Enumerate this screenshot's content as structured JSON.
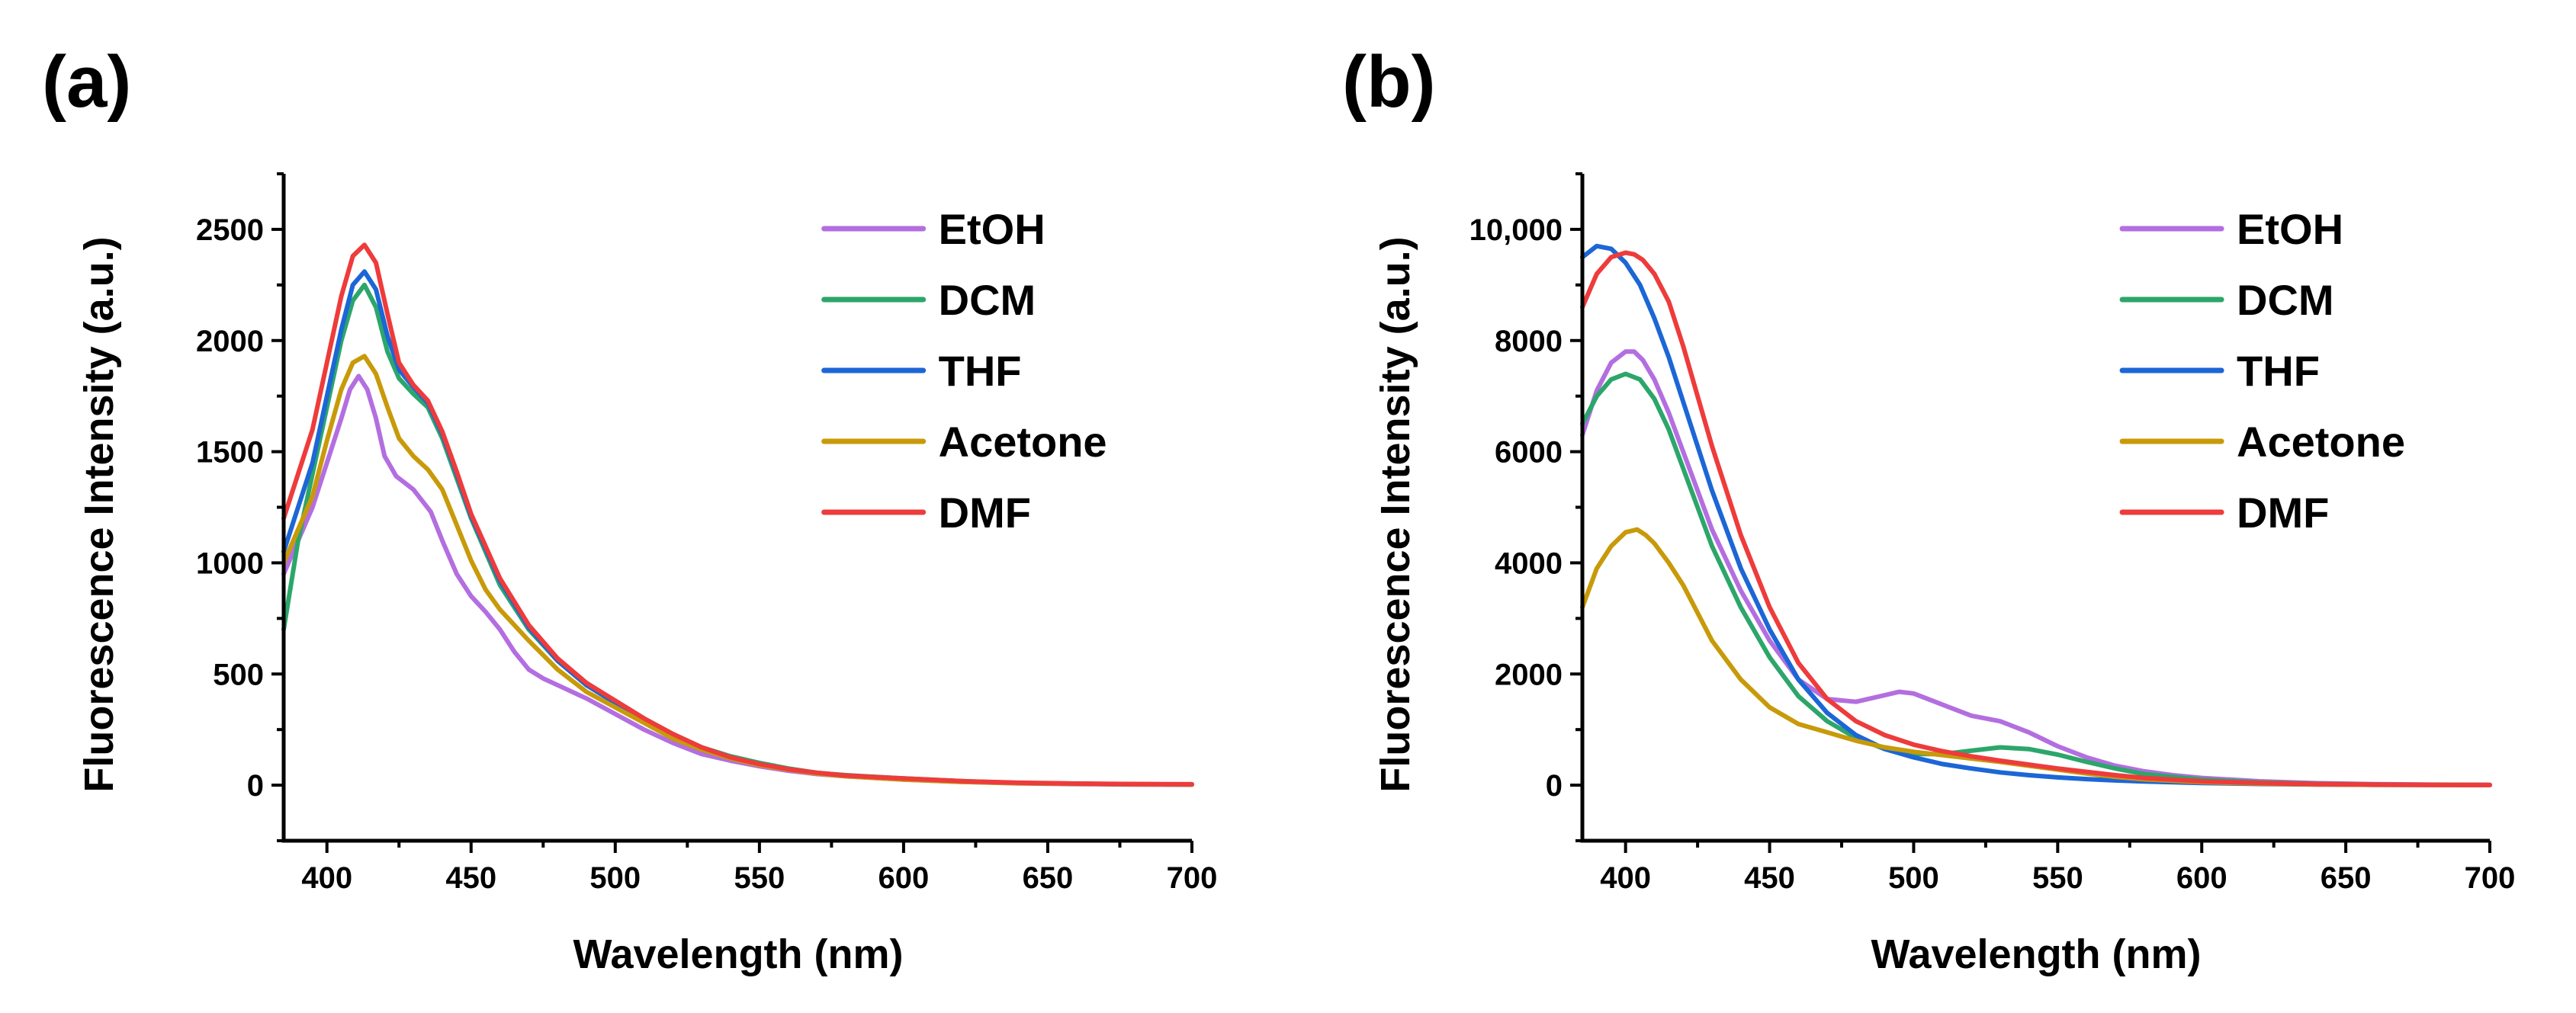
{
  "chart_data": [
    {
      "panel_label": "(a)",
      "type": "line",
      "xlabel": "Wavelength (nm)",
      "ylabel": "Fluorescence Intensity (a.u.)",
      "xlim": [
        385,
        700
      ],
      "ylim": [
        -250,
        2750
      ],
      "xticks": [
        400,
        450,
        500,
        550,
        600,
        650,
        700
      ],
      "xtick_labels": [
        "400",
        "450",
        "500",
        "550",
        "600",
        "650",
        "700"
      ],
      "yticks": [
        0,
        500,
        1000,
        1500,
        2000,
        2500
      ],
      "ytick_labels": [
        "0",
        "500",
        "1000",
        "1500",
        "2000",
        "2500"
      ],
      "legend_position": "top-right",
      "series": [
        {
          "name": "EtOH",
          "color": "#b36ee0",
          "x": [
            385,
            390,
            395,
            400,
            405,
            408,
            411,
            414,
            417,
            420,
            424,
            430,
            436,
            440,
            445,
            450,
            455,
            460,
            465,
            470,
            475,
            480,
            490,
            500,
            510,
            520,
            530,
            540,
            550,
            560,
            570,
            580,
            600,
            620,
            640,
            660,
            680,
            700
          ],
          "y": [
            950,
            1100,
            1250,
            1450,
            1650,
            1780,
            1840,
            1780,
            1650,
            1480,
            1390,
            1330,
            1230,
            1100,
            950,
            850,
            780,
            700,
            600,
            520,
            480,
            450,
            390,
            320,
            250,
            190,
            140,
            110,
            85,
            65,
            50,
            40,
            25,
            15,
            8,
            5,
            3,
            2
          ]
        },
        {
          "name": "DCM",
          "color": "#2ca66a",
          "x": [
            385,
            390,
            395,
            400,
            405,
            409,
            413,
            417,
            421,
            425,
            430,
            435,
            440,
            445,
            450,
            460,
            470,
            480,
            490,
            500,
            510,
            520,
            530,
            540,
            550,
            560,
            570,
            580,
            600,
            620,
            640,
            660,
            680,
            700
          ],
          "y": [
            700,
            1100,
            1400,
            1700,
            2000,
            2180,
            2250,
            2150,
            1950,
            1830,
            1760,
            1700,
            1560,
            1380,
            1200,
            900,
            700,
            560,
            450,
            380,
            300,
            230,
            170,
            130,
            100,
            75,
            55,
            45,
            30,
            18,
            10,
            6,
            4,
            3
          ]
        },
        {
          "name": "THF",
          "color": "#1c66d6",
          "x": [
            385,
            390,
            395,
            400,
            405,
            409,
            413,
            417,
            421,
            425,
            430,
            435,
            440,
            445,
            450,
            460,
            470,
            480,
            490,
            500,
            510,
            520,
            530,
            540,
            550,
            560,
            570,
            580,
            600,
            620,
            640,
            660,
            680,
            700
          ],
          "y": [
            1050,
            1250,
            1450,
            1750,
            2050,
            2250,
            2310,
            2230,
            2020,
            1870,
            1790,
            1720,
            1580,
            1400,
            1210,
            920,
            710,
            560,
            450,
            370,
            290,
            220,
            160,
            120,
            95,
            70,
            55,
            42,
            28,
            17,
            10,
            6,
            4,
            3
          ]
        },
        {
          "name": "Acetone",
          "color": "#c89a0a",
          "x": [
            385,
            390,
            395,
            400,
            405,
            409,
            413,
            417,
            421,
            425,
            430,
            435,
            440,
            445,
            450,
            455,
            460,
            470,
            480,
            490,
            500,
            510,
            520,
            530,
            540,
            550,
            560,
            570,
            580,
            600,
            620,
            640,
            660,
            680,
            700
          ],
          "y": [
            1000,
            1150,
            1300,
            1550,
            1780,
            1900,
            1930,
            1850,
            1700,
            1560,
            1480,
            1420,
            1330,
            1170,
            1010,
            880,
            790,
            650,
            520,
            420,
            350,
            280,
            210,
            160,
            120,
            90,
            70,
            52,
            40,
            25,
            15,
            9,
            6,
            4,
            3
          ]
        },
        {
          "name": "DMF",
          "color": "#ee3b3b",
          "x": [
            385,
            390,
            395,
            400,
            405,
            409,
            413,
            417,
            421,
            425,
            430,
            435,
            440,
            445,
            450,
            460,
            470,
            480,
            490,
            500,
            510,
            520,
            530,
            540,
            550,
            560,
            570,
            580,
            600,
            620,
            640,
            660,
            680,
            700
          ],
          "y": [
            1200,
            1400,
            1600,
            1900,
            2200,
            2380,
            2430,
            2350,
            2120,
            1900,
            1800,
            1730,
            1590,
            1410,
            1220,
            930,
            720,
            570,
            460,
            380,
            300,
            230,
            170,
            125,
            95,
            72,
            56,
            43,
            30,
            18,
            11,
            7,
            5,
            4
          ]
        }
      ]
    },
    {
      "panel_label": "(b)",
      "type": "line",
      "xlabel": "Wavelength (nm)",
      "ylabel": "Fluorescence Intensity (a.u.)",
      "xlim": [
        385,
        700
      ],
      "ylim": [
        -1000,
        11000
      ],
      "xticks": [
        400,
        450,
        500,
        550,
        600,
        650,
        700
      ],
      "xtick_labels": [
        "400",
        "450",
        "500",
        "550",
        "600",
        "650",
        "700"
      ],
      "yticks": [
        0,
        2000,
        4000,
        6000,
        8000,
        10000
      ],
      "ytick_labels": [
        "0",
        "2000",
        "4000",
        "6000",
        "8000",
        "10,000"
      ],
      "legend_position": "top-right",
      "series": [
        {
          "name": "EtOH",
          "color": "#b36ee0",
          "x": [
            385,
            390,
            395,
            400,
            403,
            406,
            410,
            415,
            420,
            425,
            430,
            440,
            450,
            460,
            470,
            480,
            490,
            495,
            500,
            510,
            520,
            530,
            540,
            550,
            560,
            570,
            580,
            590,
            600,
            620,
            640,
            660,
            680,
            700
          ],
          "y": [
            6300,
            7100,
            7600,
            7800,
            7800,
            7650,
            7300,
            6700,
            6000,
            5300,
            4600,
            3500,
            2600,
            1900,
            1550,
            1500,
            1620,
            1680,
            1650,
            1450,
            1250,
            1150,
            950,
            700,
            500,
            350,
            250,
            180,
            130,
            70,
            35,
            18,
            10,
            5
          ]
        },
        {
          "name": "DCM",
          "color": "#2ca66a",
          "x": [
            385,
            390,
            395,
            400,
            405,
            410,
            415,
            420,
            425,
            430,
            440,
            450,
            460,
            470,
            480,
            490,
            500,
            510,
            520,
            530,
            540,
            550,
            560,
            570,
            580,
            600,
            620,
            640,
            660,
            680,
            700
          ],
          "y": [
            6500,
            7000,
            7300,
            7400,
            7300,
            6950,
            6400,
            5700,
            5000,
            4300,
            3200,
            2300,
            1600,
            1150,
            850,
            650,
            560,
            560,
            620,
            680,
            650,
            550,
            420,
            300,
            200,
            100,
            50,
            25,
            12,
            6,
            3
          ]
        },
        {
          "name": "THF",
          "color": "#1c66d6",
          "x": [
            385,
            390,
            395,
            400,
            405,
            410,
            415,
            420,
            425,
            430,
            440,
            450,
            460,
            470,
            480,
            490,
            500,
            510,
            520,
            530,
            540,
            550,
            560,
            570,
            580,
            600,
            620,
            640,
            660,
            680,
            700
          ],
          "y": [
            9500,
            9700,
            9650,
            9400,
            9000,
            8400,
            7700,
            6900,
            6100,
            5300,
            3900,
            2800,
            1900,
            1300,
            900,
            650,
            500,
            380,
            300,
            230,
            180,
            140,
            110,
            85,
            65,
            40,
            22,
            12,
            7,
            4,
            2
          ]
        },
        {
          "name": "Acetone",
          "color": "#c89a0a",
          "x": [
            385,
            390,
            395,
            400,
            404,
            407,
            410,
            415,
            420,
            425,
            430,
            440,
            450,
            460,
            470,
            480,
            490,
            500,
            510,
            520,
            530,
            540,
            550,
            560,
            570,
            580,
            600,
            620,
            640,
            660,
            680,
            700
          ],
          "y": [
            3200,
            3900,
            4300,
            4550,
            4600,
            4500,
            4350,
            4000,
            3600,
            3100,
            2600,
            1900,
            1400,
            1100,
            950,
            800,
            680,
            600,
            540,
            480,
            420,
            350,
            280,
            210,
            150,
            105,
            55,
            28,
            14,
            7,
            4,
            2
          ]
        },
        {
          "name": "DMF",
          "color": "#ee3b3b",
          "x": [
            385,
            390,
            395,
            400,
            403,
            406,
            410,
            415,
            420,
            425,
            430,
            440,
            450,
            460,
            470,
            480,
            490,
            500,
            510,
            520,
            530,
            540,
            550,
            560,
            570,
            580,
            600,
            620,
            640,
            660,
            680,
            700
          ],
          "y": [
            8600,
            9200,
            9500,
            9580,
            9550,
            9450,
            9200,
            8700,
            7900,
            7000,
            6100,
            4500,
            3200,
            2200,
            1550,
            1150,
            900,
            730,
            610,
            520,
            440,
            370,
            300,
            240,
            180,
            130,
            70,
            38,
            20,
            10,
            5,
            2
          ]
        }
      ]
    }
  ]
}
